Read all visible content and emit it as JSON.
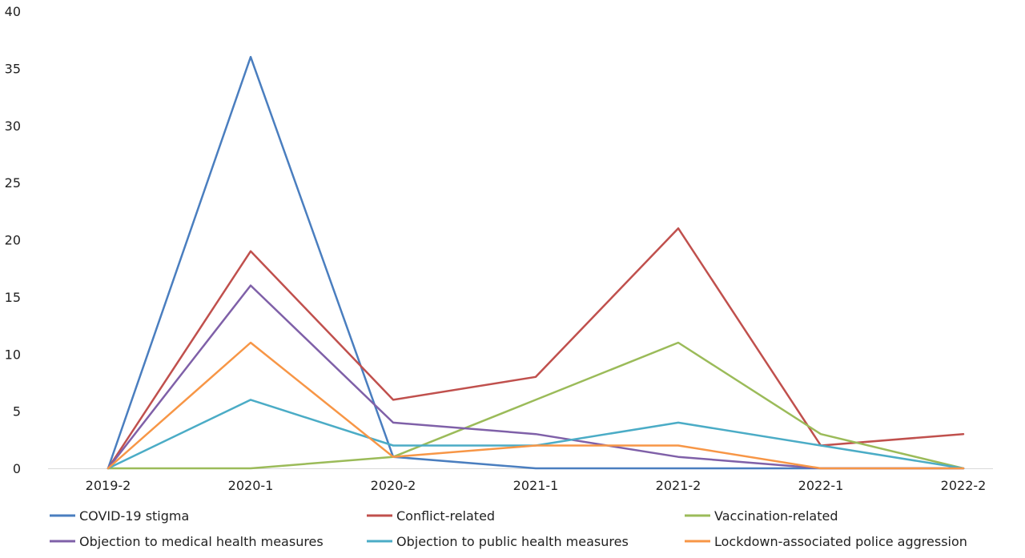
{
  "chart_data": {
    "type": "line",
    "title": "",
    "xlabel": "",
    "ylabel": "",
    "x": [
      "2019-2",
      "2020-1",
      "2020-2",
      "2021-1",
      "2021-2",
      "2022-1",
      "2022-2"
    ],
    "ylim": [
      0,
      40
    ],
    "yticks": [
      0,
      5,
      10,
      15,
      20,
      25,
      30,
      35,
      40
    ],
    "grid": false,
    "legend_position": "bottom",
    "series": [
      {
        "name": "COVID-19 stigma",
        "color": "#4a7ebf",
        "values": [
          0,
          36,
          1,
          0,
          0,
          0,
          0
        ]
      },
      {
        "name": "Conflict-related",
        "color": "#c0504d",
        "values": [
          0,
          19,
          6,
          8,
          21,
          2,
          3
        ]
      },
      {
        "name": "Vaccination-related",
        "color": "#9bbb59",
        "values": [
          0,
          0,
          1,
          6,
          11,
          3,
          0
        ]
      },
      {
        "name": "Objection to medical health measures",
        "color": "#7f60a8",
        "values": [
          0,
          16,
          4,
          3,
          1,
          0,
          0
        ]
      },
      {
        "name": "Objection to public health measures",
        "color": "#4bacc6",
        "values": [
          0,
          6,
          2,
          2,
          4,
          2,
          0
        ]
      },
      {
        "name": "Lockdown-associated police aggression",
        "color": "#f79646",
        "values": [
          0,
          11,
          1,
          2,
          2,
          0,
          0
        ]
      }
    ]
  }
}
